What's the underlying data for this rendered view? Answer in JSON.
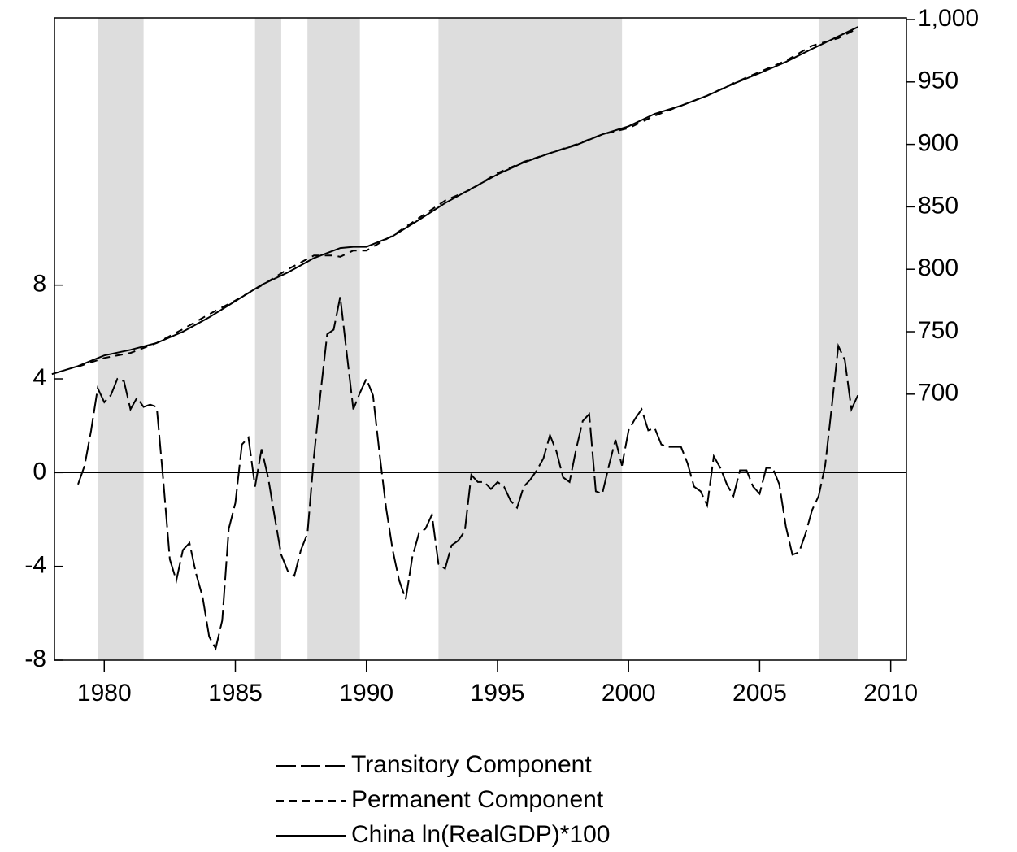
{
  "chart_data": {
    "type": "line",
    "xlim": [
      1978.1,
      2010.6
    ],
    "xticks": [
      1980,
      1985,
      1990,
      1995,
      2000,
      2005,
      2010
    ],
    "ylim": [
      -8,
      19.4
    ],
    "yticks": [
      -8,
      -4,
      0,
      4,
      8
    ],
    "y2lim": [
      487,
      1001.3
    ],
    "y2ticks": [
      700,
      750,
      800,
      850,
      900,
      950,
      {
        "value": 1000,
        "label": "1,000"
      }
    ],
    "zero_line": true,
    "shade_color": "#dddddd",
    "shaded_periods": [
      [
        1979.75,
        1981.5
      ],
      [
        1985.75,
        1986.75
      ],
      [
        1987.75,
        1989.75
      ],
      [
        1992.75,
        1999.75
      ],
      [
        2007.25,
        2008.75
      ]
    ],
    "legend": "bottom",
    "series": [
      {
        "name": "Transitory Component",
        "color": "#000000",
        "dash": "long",
        "axis": "y",
        "x": [
          1979,
          1979.25,
          1979.5,
          1979.75,
          1980,
          1980.25,
          1980.5,
          1980.75,
          1981,
          1981.25,
          1981.5,
          1981.75,
          1982,
          1982.25,
          1982.5,
          1982.75,
          1983,
          1983.25,
          1983.5,
          1983.75,
          1984,
          1984.25,
          1984.5,
          1984.75,
          1985,
          1985.25,
          1985.5,
          1985.75,
          1986,
          1986.25,
          1986.5,
          1986.75,
          1987,
          1987.25,
          1987.5,
          1987.75,
          1988,
          1988.25,
          1988.5,
          1988.75,
          1989,
          1989.25,
          1989.5,
          1989.75,
          1990,
          1990.25,
          1990.5,
          1990.75,
          1991,
          1991.25,
          1991.5,
          1991.75,
          1992,
          1992.25,
          1992.5,
          1992.75,
          1993,
          1993.25,
          1993.5,
          1993.75,
          1994,
          1994.25,
          1994.5,
          1994.75,
          1995,
          1995.25,
          1995.5,
          1995.75,
          1996,
          1996.25,
          1996.5,
          1996.75,
          1997,
          1997.25,
          1997.5,
          1997.75,
          1998,
          1998.25,
          1998.5,
          1998.75,
          1999,
          1999.25,
          1999.5,
          1999.75,
          2000,
          2000.25,
          2000.5,
          2000.75,
          2001,
          2001.25,
          2001.5,
          2001.75,
          2002,
          2002.25,
          2002.5,
          2002.75,
          2003,
          2003.25,
          2003.5,
          2003.75,
          2004,
          2004.25,
          2004.5,
          2004.75,
          2005,
          2005.25,
          2005.5,
          2005.75,
          2006,
          2006.25,
          2006.5,
          2006.75,
          2007,
          2007.25,
          2007.5,
          2007.75,
          2008,
          2008.25,
          2008.5,
          2008.75
        ],
        "values": [
          -0.5,
          0.3,
          1.8,
          3.6,
          3.0,
          3.3,
          4.0,
          3.9,
          2.7,
          3.2,
          2.8,
          2.9,
          2.8,
          -0.3,
          -3.7,
          -4.6,
          -3.3,
          -3.0,
          -4.3,
          -5.3,
          -7.0,
          -7.5,
          -6.3,
          -2.4,
          -1.3,
          1.2,
          1.5,
          -0.6,
          1.0,
          -0.2,
          -1.9,
          -3.5,
          -4.2,
          -4.4,
          -3.3,
          -2.6,
          0.7,
          3.4,
          5.9,
          6.1,
          7.5,
          5.1,
          2.7,
          3.4,
          4.0,
          3.3,
          0.8,
          -1.5,
          -3.3,
          -4.6,
          -5.4,
          -3.6,
          -2.6,
          -2.4,
          -1.8,
          -3.9,
          -4.1,
          -3.1,
          -2.9,
          -2.5,
          -0.1,
          -0.4,
          -0.4,
          -0.7,
          -0.4,
          -0.6,
          -1.2,
          -1.5,
          -0.6,
          -0.3,
          0.1,
          0.6,
          1.6,
          0.9,
          -0.2,
          -0.4,
          1.0,
          2.2,
          2.5,
          -0.8,
          -0.9,
          0.3,
          1.4,
          0.3,
          1.8,
          2.3,
          2.7,
          1.8,
          1.9,
          1.2,
          1.1,
          1.1,
          1.1,
          0.4,
          -0.6,
          -0.8,
          -1.4,
          0.7,
          0.2,
          -0.5,
          -1.0,
          0.1,
          0.1,
          -0.6,
          -0.9,
          0.2,
          0.2,
          -0.5,
          -2.3,
          -3.5,
          -3.4,
          -2.6,
          -1.6,
          -1.0,
          0.3,
          2.8,
          5.4,
          4.8,
          2.7,
          3.3
        ]
      },
      {
        "name": "Permanent Component",
        "color": "#000000",
        "dash": "short",
        "axis": "y2",
        "x": [
          1979,
          1980,
          1981,
          1982,
          1983,
          1984,
          1985,
          1986,
          1987,
          1988,
          1988.75,
          1989,
          1989.5,
          1990,
          1991,
          1992,
          1993,
          1994,
          1995,
          1996,
          1997,
          1998,
          1999,
          2000,
          2001,
          2002,
          2003,
          2004,
          2005,
          2006,
          2007,
          2008,
          2008.75
        ],
        "values": [
          722,
          729,
          733,
          741,
          752,
          764,
          775,
          787,
          800,
          811,
          811,
          810,
          815,
          815,
          827,
          841,
          855,
          864,
          877,
          886,
          893,
          900,
          908,
          913,
          923,
          931,
          939,
          949,
          958,
          967,
          979,
          985,
          993
        ]
      },
      {
        "name": "China ln(RealGDP)*100",
        "color": "#000000",
        "dash": "solid",
        "axis": "y2",
        "x": [
          1978,
          1979,
          1980,
          1981,
          1982,
          1983,
          1984,
          1985,
          1986,
          1987,
          1988,
          1989,
          1989.5,
          1990,
          1991,
          1992,
          1993,
          1994,
          1995,
          1996,
          1997,
          1998,
          1999,
          2000,
          2001,
          2002,
          2003,
          2004,
          2005,
          2006,
          2007,
          2008,
          2008.75
        ],
        "values": [
          716,
          722.5,
          731,
          735.5,
          741,
          750,
          761.5,
          774.5,
          787.5,
          797.5,
          809,
          817,
          818,
          818,
          826.5,
          839.5,
          853,
          864.5,
          876,
          885.5,
          893,
          899.5,
          908,
          914.5,
          924.5,
          931,
          939,
          948.5,
          957,
          966,
          976.5,
          986.5,
          994
        ]
      }
    ]
  }
}
